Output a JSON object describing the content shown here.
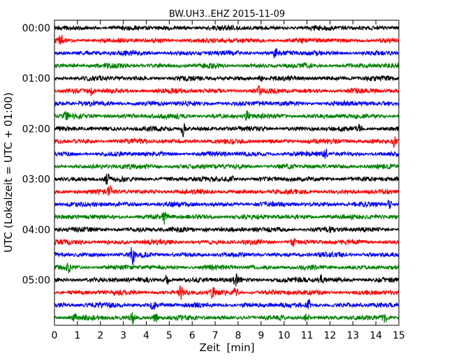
{
  "chart_data": {
    "type": "line",
    "title": "BW.UH3..EHZ 2015-11-09",
    "xlabel": "Zeit  [min]",
    "ylabel": "UTC (Lokalzeit = UTC + 01:00)",
    "xlim": [
      0,
      15
    ],
    "x_ticks": [
      0,
      1,
      2,
      3,
      4,
      5,
      6,
      7,
      8,
      9,
      10,
      11,
      12,
      13,
      14,
      15
    ],
    "y_tick_labels": [
      "00:00",
      "01:00",
      "02:00",
      "03:00",
      "04:00",
      "05:00"
    ],
    "trace_interval_min": 15,
    "trace_count": 24,
    "trace_colors": [
      "#000000",
      "#ff0000",
      "#0000ff",
      "#008000"
    ],
    "grid": false,
    "legend": "none",
    "events": [
      {
        "trace": 1,
        "x": 0.3,
        "amp": 1.6
      },
      {
        "trace": 2,
        "x": 9.6,
        "amp": 1.8
      },
      {
        "trace": 4,
        "x": 9.0,
        "amp": 1.5
      },
      {
        "trace": 5,
        "x": 1.6,
        "amp": 1.6
      },
      {
        "trace": 5,
        "x": 8.9,
        "amp": 1.4
      },
      {
        "trace": 7,
        "x": 0.5,
        "amp": 1.3
      },
      {
        "trace": 7,
        "x": 8.4,
        "amp": 1.5
      },
      {
        "trace": 8,
        "x": 5.6,
        "amp": 2.8
      },
      {
        "trace": 8,
        "x": 13.3,
        "amp": 1.4
      },
      {
        "trace": 9,
        "x": 14.8,
        "amp": 1.8
      },
      {
        "trace": 10,
        "x": 11.8,
        "amp": 1.5
      },
      {
        "trace": 12,
        "x": 2.3,
        "amp": 1.8
      },
      {
        "trace": 12,
        "x": 7.7,
        "amp": 1.3
      },
      {
        "trace": 13,
        "x": 2.4,
        "amp": 2.2
      },
      {
        "trace": 14,
        "x": 14.6,
        "amp": 1.8
      },
      {
        "trace": 15,
        "x": 4.8,
        "amp": 2.2
      },
      {
        "trace": 16,
        "x": 6.6,
        "amp": 1.6
      },
      {
        "trace": 16,
        "x": 12.0,
        "amp": 1.4
      },
      {
        "trace": 17,
        "x": 10.4,
        "amp": 1.4
      },
      {
        "trace": 18,
        "x": 3.4,
        "amp": 3.0
      },
      {
        "trace": 19,
        "x": 0.6,
        "amp": 1.6
      },
      {
        "trace": 20,
        "x": 4.9,
        "amp": 2.0
      },
      {
        "trace": 20,
        "x": 7.9,
        "amp": 2.2
      },
      {
        "trace": 20,
        "x": 11.6,
        "amp": 1.9
      },
      {
        "trace": 21,
        "x": 5.5,
        "amp": 2.2
      },
      {
        "trace": 21,
        "x": 6.9,
        "amp": 2.0
      },
      {
        "trace": 21,
        "x": 7.9,
        "amp": 1.8
      },
      {
        "trace": 22,
        "x": 4.3,
        "amp": 1.8
      },
      {
        "trace": 22,
        "x": 11.1,
        "amp": 2.4
      },
      {
        "trace": 23,
        "x": 0.9,
        "amp": 1.8
      },
      {
        "trace": 23,
        "x": 3.4,
        "amp": 2.5
      },
      {
        "trace": 23,
        "x": 4.4,
        "amp": 2.0
      },
      {
        "trace": 23,
        "x": 11.0,
        "amp": 1.8
      },
      {
        "trace": 23,
        "x": 14.4,
        "amp": 1.5
      }
    ]
  }
}
